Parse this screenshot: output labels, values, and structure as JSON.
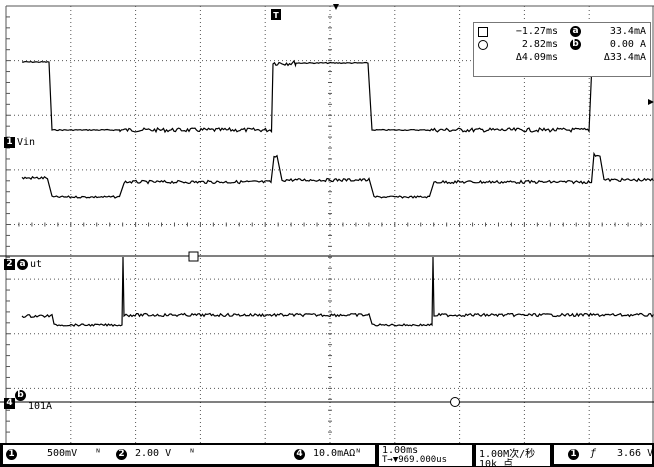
{
  "markers": {
    "trigger_position": "T",
    "cursor_marker_a": "a",
    "cursor_marker_b": "b"
  },
  "channels": {
    "ch1": {
      "number": "1",
      "name": "Vin"
    },
    "ch2": {
      "number": "2",
      "name": "ut"
    },
    "ch2_cursor": "a",
    "ch4": {
      "number": "4",
      "name": "101A"
    },
    "ch4_cursor": "b"
  },
  "cursor_readout": {
    "cursor1_time": "−1.27ms",
    "cursor2_time": "2.82ms",
    "delta_time": "Δ4.09ms",
    "cursor_a_label": "a",
    "cursor_a_value": "33.4mA",
    "cursor_b_label": "b",
    "cursor_b_value": "0.00 A",
    "delta_value": "Δ33.4mA"
  },
  "status_bar": {
    "ch1_num": "1",
    "ch1_scale": "500mV",
    "ch1_bw": "ᴺ",
    "ch2_num": "2",
    "ch2_scale": "2.00 V",
    "ch2_bw": "ᴺ",
    "ch4_num": "4",
    "ch4_scale": "10.0mAΩᴺ",
    "timebase": "1.00ms",
    "trigger_pos": "T→▼969.000us",
    "sample_rate": "1.00M次/秒",
    "record_length": "10k 点",
    "trig_channel": "1",
    "trig_slope": "ƒ",
    "trig_level": "3.66 V"
  },
  "colors": {
    "trace": "#000000",
    "grid": "#666666",
    "background": "#ffffff"
  }
}
